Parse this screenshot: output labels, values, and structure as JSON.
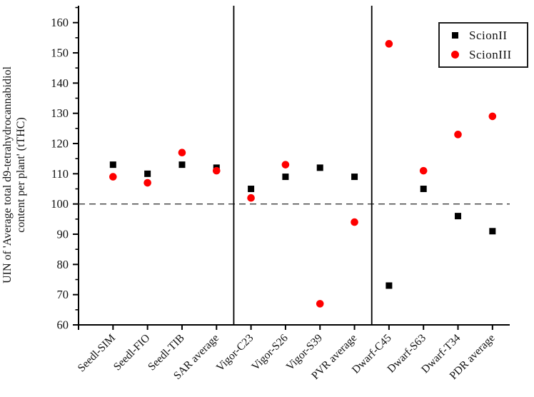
{
  "figure": {
    "background": "#ffffff",
    "axis_color": "#000000",
    "reference_line_color": "#3a3a3a"
  },
  "chart_data": {
    "type": "scatter",
    "title": "",
    "ylabel": "UIN of 'Average total d9-tetrahydrocannabidiol content per plant' (tTHC)",
    "ylabel_lines": [
      "UIN of 'Average total d9-tetrahydrocannabidiol",
      "content per plant' (tTHC)"
    ],
    "xlabel": "",
    "categories": [
      "Seedl-SIM",
      "Seedl-FIO",
      "Seedl-TIB",
      "SAR average",
      "Vigor-C23",
      "Vigor-S26",
      "Vigor-S39",
      "PVR average",
      "Dwarf-C45",
      "Dwarf-S63",
      "Dwarf-T34",
      "PDR average"
    ],
    "series": [
      {
        "name": "ScionII",
        "marker": "square",
        "color": "#000000",
        "values": [
          113,
          110,
          113,
          112,
          105,
          109,
          112,
          109,
          73,
          105,
          96,
          91
        ]
      },
      {
        "name": "ScionIII",
        "marker": "circle",
        "color": "#fe0000",
        "values": [
          109,
          107,
          117,
          111,
          102,
          113,
          67,
          94,
          153,
          111,
          123,
          129
        ]
      }
    ],
    "ylim": [
      60,
      165.6
    ],
    "yticks": [
      60,
      70,
      80,
      90,
      100,
      110,
      120,
      130,
      140,
      150,
      160
    ],
    "reference_line_y": 100,
    "group_separators_between": [
      [
        3,
        4
      ],
      [
        7,
        8
      ]
    ],
    "legend_position": "top-right",
    "grid": false
  }
}
